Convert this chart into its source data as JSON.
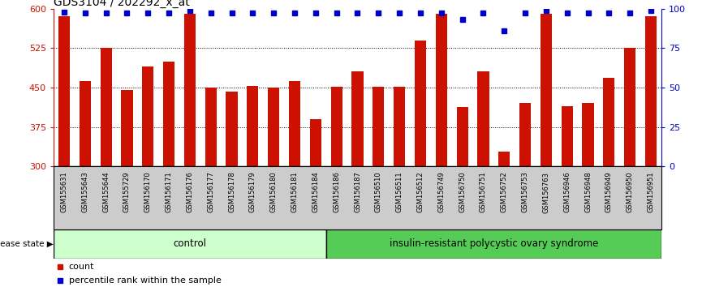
{
  "title": "GDS3104 / 202292_x_at",
  "samples": [
    "GSM155631",
    "GSM155643",
    "GSM155644",
    "GSM155729",
    "GSM156170",
    "GSM156171",
    "GSM156176",
    "GSM156177",
    "GSM156178",
    "GSM156179",
    "GSM156180",
    "GSM156181",
    "GSM156184",
    "GSM156186",
    "GSM156187",
    "GSM156510",
    "GSM156511",
    "GSM156512",
    "GSM156749",
    "GSM156750",
    "GSM156751",
    "GSM156752",
    "GSM156753",
    "GSM156763",
    "GSM156946",
    "GSM156948",
    "GSM156949",
    "GSM156950",
    "GSM156951"
  ],
  "counts": [
    585,
    462,
    525,
    445,
    490,
    500,
    590,
    450,
    443,
    453,
    450,
    462,
    390,
    451,
    480,
    451,
    451,
    540,
    590,
    413,
    480,
    328,
    420,
    590,
    415,
    420,
    468,
    525,
    585
  ],
  "percentile_ranks": [
    98,
    97,
    97,
    97,
    97,
    97,
    99,
    97,
    97,
    97,
    97,
    97,
    97,
    97,
    97,
    97,
    97,
    97,
    97,
    93,
    97,
    86,
    97,
    99,
    97,
    97,
    97,
    97,
    99
  ],
  "group_labels": [
    "control",
    "insulin-resistant polycystic ovary syndrome"
  ],
  "n_control": 13,
  "n_disease": 16,
  "bar_color": "#cc1100",
  "dot_color": "#0000cc",
  "group_color_control": "#ccffcc",
  "group_color_disease": "#55cc55",
  "ylim_left": [
    300,
    600
  ],
  "ylim_right": [
    0,
    100
  ],
  "yticks_left": [
    300,
    375,
    450,
    525,
    600
  ],
  "yticks_right": [
    0,
    25,
    50,
    75,
    100
  ],
  "left_tick_color": "#cc1100",
  "right_tick_color": "#0000cc",
  "legend_count_label": "count",
  "legend_pct_label": "percentile rank within the sample",
  "disease_state_label": "disease state",
  "label_area_color": "#cccccc",
  "bar_width": 0.55
}
